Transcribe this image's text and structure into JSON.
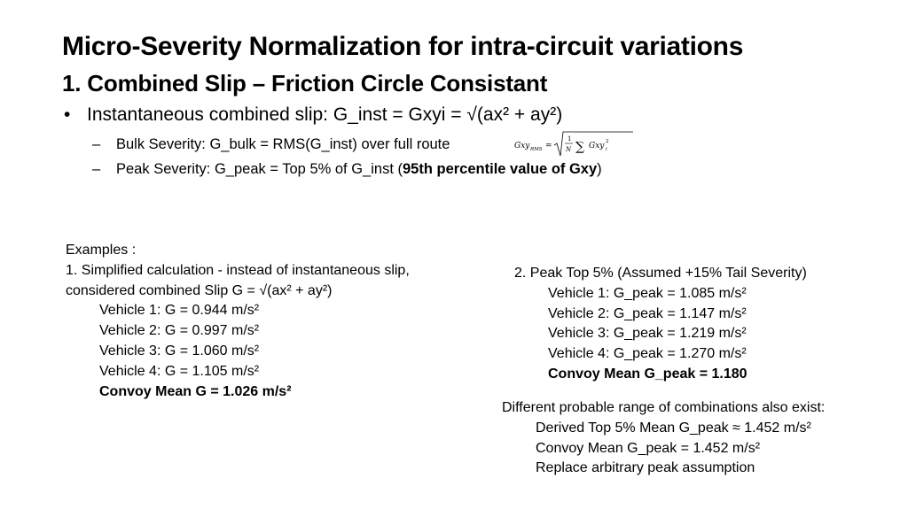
{
  "slide": {
    "title": "Micro-Severity Normalization for intra-circuit variations",
    "subtitle": "1. Combined Slip – Friction Circle Consistant",
    "bullet": {
      "symbol": "•",
      "text": "Instantaneous combined slip: G_inst = Gxyi = √(ax² + ay²)"
    },
    "sub_bullets": [
      {
        "dash": "–",
        "text": "Bulk Severity: G_bulk = RMS(G_inst) over full route"
      },
      {
        "dash": "–",
        "text_plain": "Peak Severity: G_peak = Top 5% of G_inst (",
        "text_bold": "95th percentile value of Gxy",
        "text_end": ")"
      }
    ],
    "formula": {
      "lhs": "Gxy",
      "lhs_sub": "RMS",
      "equals": "=",
      "frac_num": "1",
      "frac_den": "N",
      "sum": "∑",
      "term": "Gxy",
      "term_sub": "i",
      "term_sup": "2"
    },
    "examples": {
      "heading": "Examples :",
      "line1": "1. Simplified calculation - instead of instantaneous slip,",
      "line2": "considered combined Slip G = √(ax² + ay²)",
      "vehicles": [
        "Vehicle 1: G = 0.944 m/s²",
        "Vehicle 2: G = 0.997 m/s²",
        "Vehicle 3: G = 1.060 m/s²",
        "Vehicle 4: G = 1.105 m/s²"
      ],
      "mean": "Convoy Mean G = 1.026 m/s²"
    },
    "peak": {
      "heading": "2. Peak Top 5% (Assumed +15% Tail Severity)",
      "vehicles": [
        "Vehicle 1: G_peak = 1.085 m/s²",
        "Vehicle 2: G_peak = 1.147 m/s²",
        "Vehicle 3: G_peak = 1.219 m/s²",
        "Vehicle 4: G_peak = 1.270 m/s²"
      ],
      "mean": "Convoy Mean G_peak = 1.180"
    },
    "range": {
      "heading": "Different probable range of combinations also exist:",
      "lines": [
        "Derived Top 5% Mean G_peak ≈ 1.452 m/s²",
        "Convoy Mean G_peak = 1.452 m/s²",
        "Replace arbitrary peak assumption"
      ]
    }
  }
}
